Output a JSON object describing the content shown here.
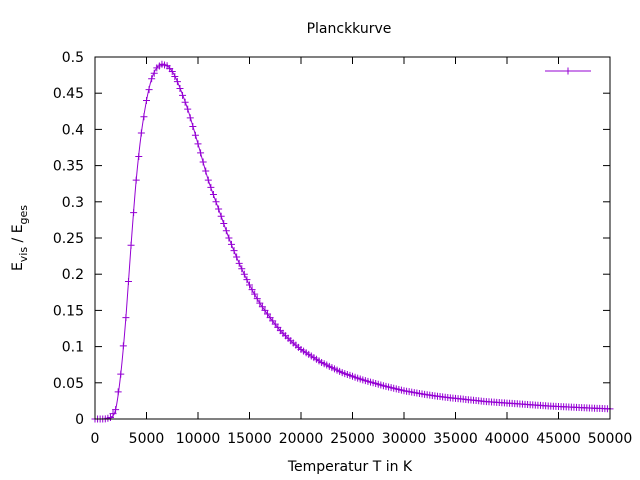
{
  "chart_data": {
    "type": "line",
    "title": "Planckkurve",
    "xlabel": "Temperatur T in K",
    "ylabel_main": "E",
    "ylabel_sub1": "vis",
    "ylabel_sep": " / E",
    "ylabel_sub2": "ges",
    "xlim": [
      0,
      50000
    ],
    "ylim": [
      0,
      0.5
    ],
    "x_ticks": [
      0,
      5000,
      10000,
      15000,
      20000,
      25000,
      30000,
      35000,
      40000,
      45000,
      50000
    ],
    "y_ticks": [
      0,
      0.05,
      0.1,
      0.15,
      0.2,
      0.25,
      0.3,
      0.35,
      0.4,
      0.45,
      0.5
    ],
    "x_tick_labels": [
      "0",
      "5000",
      "10000",
      "15000",
      "20000",
      "25000",
      "30000",
      "35000",
      "40000",
      "45000",
      "50000"
    ],
    "y_tick_labels": [
      "0",
      "0.05",
      "0.1",
      "0.15",
      "0.2",
      "0.25",
      "0.3",
      "0.35",
      "0.4",
      "0.45",
      "0.5"
    ],
    "grid": false,
    "legend_position": "top-right",
    "marker": "plus",
    "color": "#9400d3",
    "series": [
      {
        "x": [
          0,
          1000,
          1500,
          2000,
          2500,
          3000,
          3500,
          4000,
          4500,
          5000,
          5500,
          6000,
          6500,
          7000,
          7500,
          8000,
          9000,
          10000,
          11000,
          12000,
          13000,
          14000,
          15000,
          16000,
          17000,
          18000,
          19000,
          20000,
          22000,
          24000,
          26000,
          28000,
          30000,
          32000,
          34000,
          36000,
          38000,
          40000,
          42000,
          44000,
          46000,
          48000,
          50000
        ],
        "y": [
          0,
          0.0001,
          0.002,
          0.013,
          0.062,
          0.14,
          0.24,
          0.33,
          0.395,
          0.44,
          0.47,
          0.485,
          0.49,
          0.488,
          0.48,
          0.466,
          0.428,
          0.38,
          0.33,
          0.29,
          0.25,
          0.215,
          0.185,
          0.16,
          0.14,
          0.122,
          0.108,
          0.096,
          0.078,
          0.064,
          0.054,
          0.046,
          0.039,
          0.034,
          0.03,
          0.027,
          0.024,
          0.022,
          0.02,
          0.018,
          0.0165,
          0.0152,
          0.014
        ]
      }
    ]
  }
}
